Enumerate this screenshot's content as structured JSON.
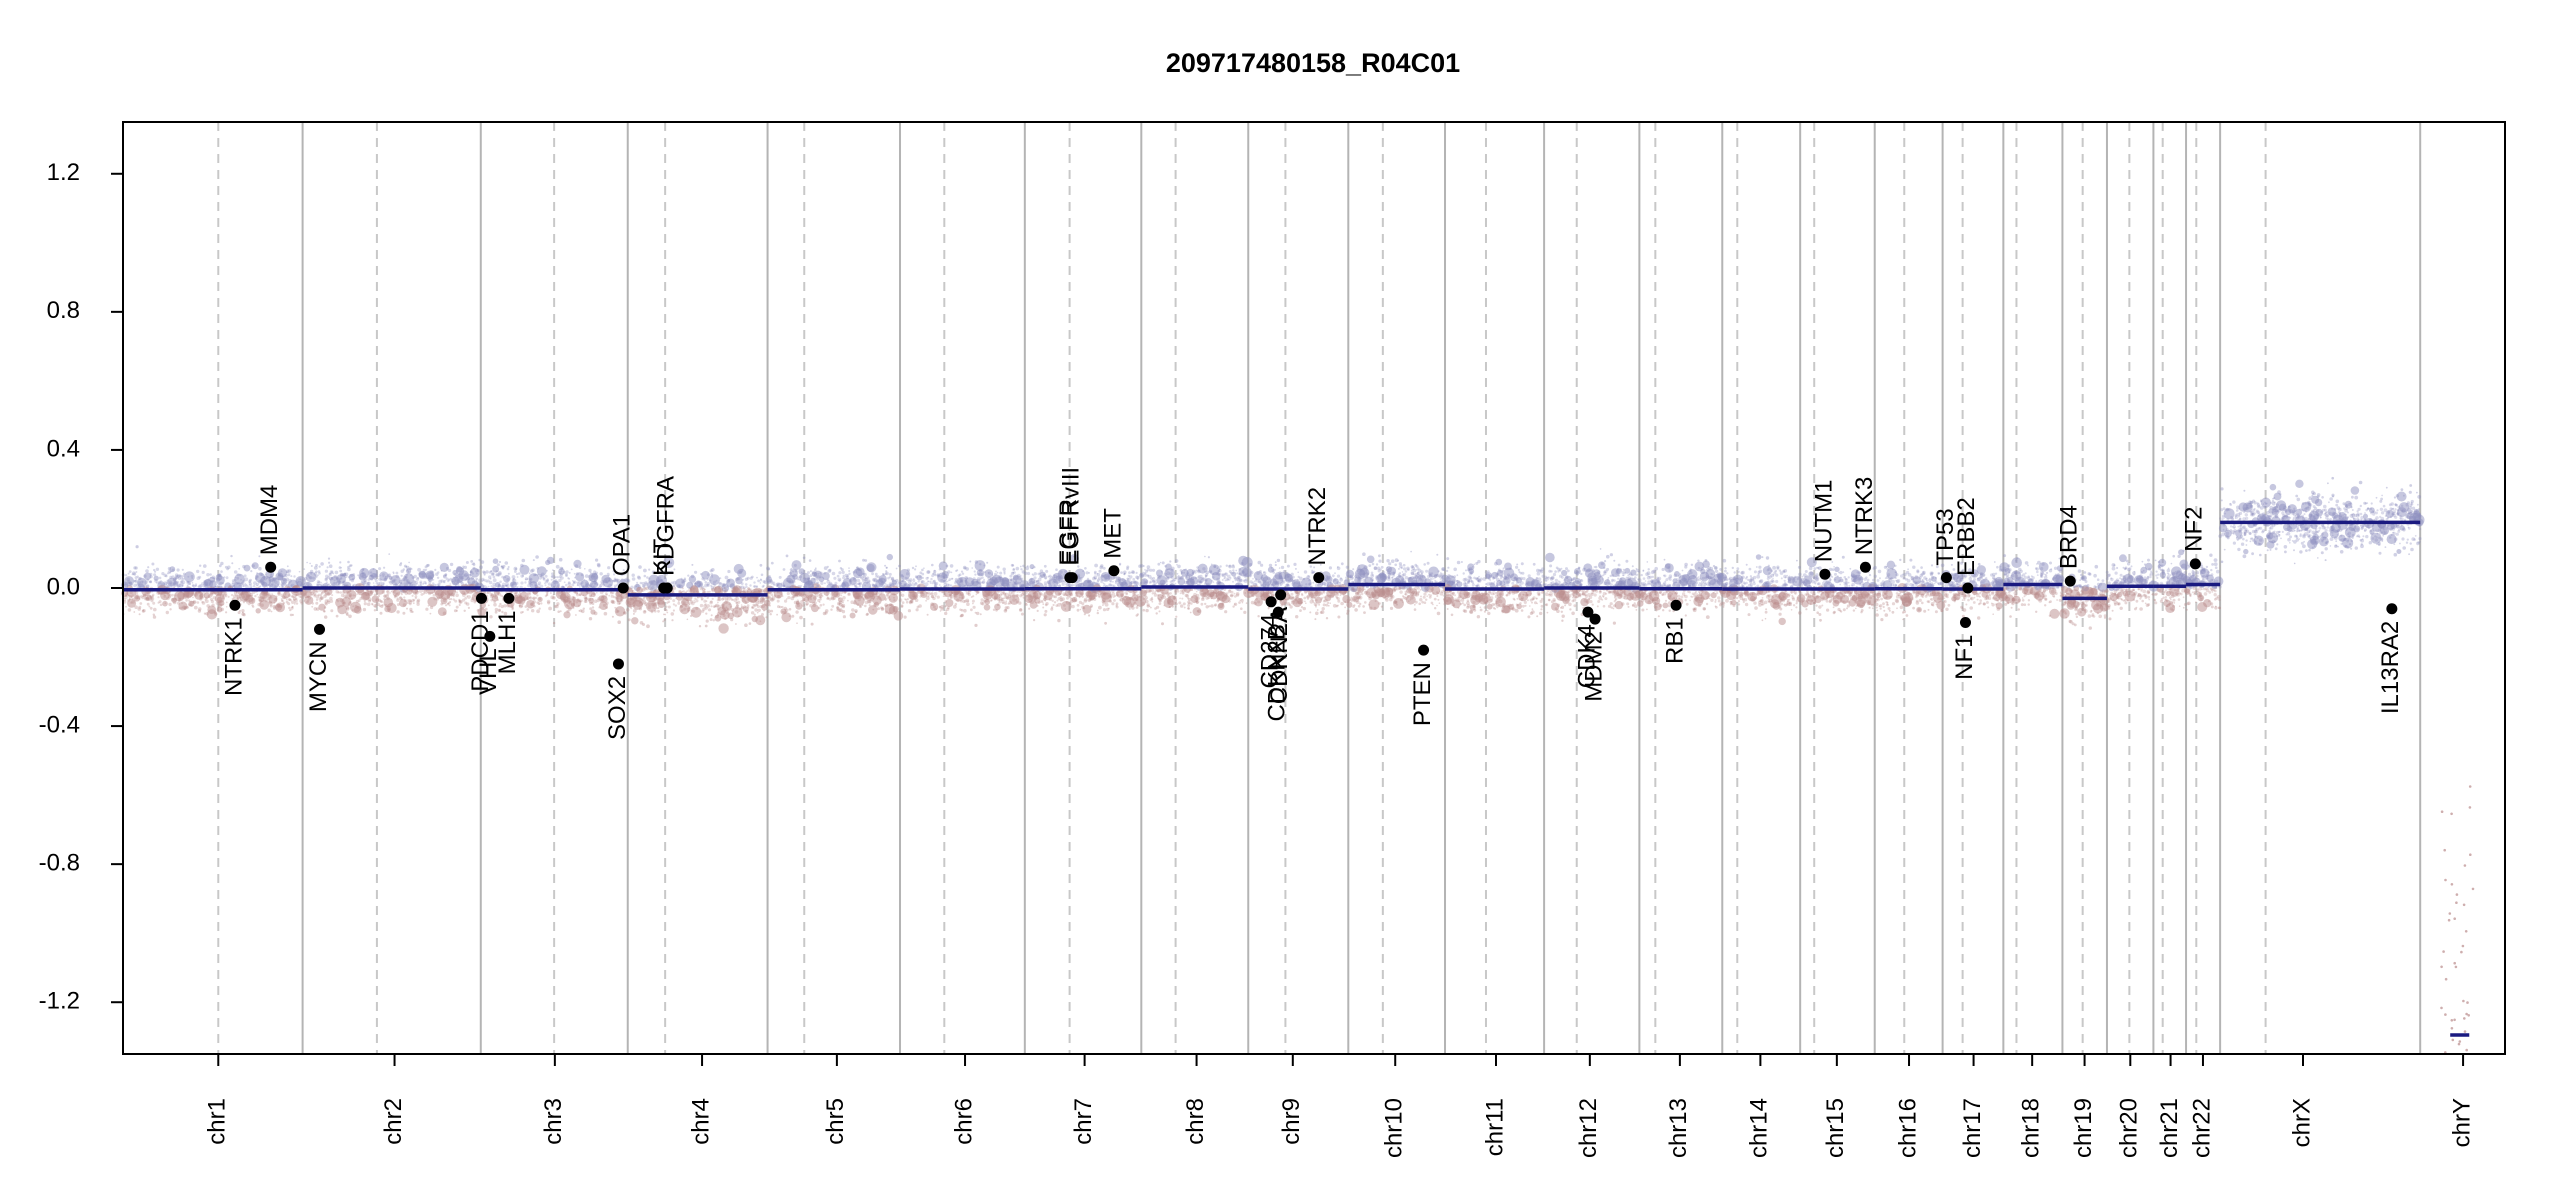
{
  "chart_data": {
    "type": "scatter",
    "title": "209717480158_R04C01",
    "xlabel": "",
    "ylabel": "",
    "ylim": [
      -1.35,
      1.35
    ],
    "y_ticks": [
      -1.2,
      -0.8,
      -0.4,
      0.0,
      0.4,
      0.8,
      1.2
    ],
    "y_tick_labels": [
      "-1.2",
      "-0.8",
      "-0.4",
      "0.0",
      "0.4",
      "0.8",
      "1.2"
    ],
    "x_range": [
      0,
      1000
    ],
    "colors": {
      "gain": "#8e8fbf",
      "loss": "#b98b8b",
      "segment": "#1a1a80",
      "gene": "#000000",
      "axis": "#000000",
      "boundary": "#b4b4b4",
      "centromere": "#c8c8c8"
    },
    "chromosomes": [
      {
        "name": "chr1",
        "start": 0,
        "end": 75.4,
        "centromere": 40.0,
        "label": 40.0
      },
      {
        "name": "chr2",
        "start": 75.4,
        "end": 150.2,
        "centromere": 106.6,
        "label": 114.0
      },
      {
        "name": "chr3",
        "start": 150.2,
        "end": 211.9,
        "centromere": 181.0,
        "label": 181.3
      },
      {
        "name": "chr4",
        "start": 211.9,
        "end": 270.6,
        "centromere": 227.6,
        "label": 243.1
      },
      {
        "name": "chr5",
        "start": 270.6,
        "end": 326.2,
        "centromere": 286.0,
        "label": 299.7
      },
      {
        "name": "chr6",
        "start": 326.2,
        "end": 378.6,
        "centromere": 344.8,
        "label": 353.5
      },
      {
        "name": "chr7",
        "start": 378.6,
        "end": 427.5,
        "centromere": 397.4,
        "label": 403.7
      },
      {
        "name": "chr8",
        "start": 427.5,
        "end": 472.4,
        "centromere": 441.9,
        "label": 450.7
      },
      {
        "name": "chr9",
        "start": 472.4,
        "end": 514.4,
        "centromere": 488.0,
        "label": 491.1
      },
      {
        "name": "chr10",
        "start": 514.4,
        "end": 555.0,
        "centromere": 528.9,
        "label": 534.1
      },
      {
        "name": "chr11",
        "start": 555.0,
        "end": 596.6,
        "centromere": 572.2,
        "label": 576.4
      },
      {
        "name": "chr12",
        "start": 596.6,
        "end": 636.6,
        "centromere": 610.3,
        "label": 615.8
      },
      {
        "name": "chr13",
        "start": 636.6,
        "end": 671.4,
        "centromere": 643.3,
        "label": 653.6
      },
      {
        "name": "chr14",
        "start": 671.4,
        "end": 704.1,
        "centromere": 677.7,
        "label": 687.4
      },
      {
        "name": "chr15",
        "start": 704.1,
        "end": 735.4,
        "centromere": 710.0,
        "label": 719.5
      },
      {
        "name": "chr16",
        "start": 735.4,
        "end": 763.9,
        "centromere": 747.8,
        "label": 749.8
      },
      {
        "name": "chr17",
        "start": 763.9,
        "end": 789.4,
        "centromere": 772.3,
        "label": 776.9
      },
      {
        "name": "chr18",
        "start": 789.4,
        "end": 814.2,
        "centromere": 794.9,
        "label": 801.5
      },
      {
        "name": "chr19",
        "start": 814.2,
        "end": 832.9,
        "centromere": 822.7,
        "label": 823.5
      },
      {
        "name": "chr20",
        "start": 832.9,
        "end": 852.4,
        "centromere": 842.3,
        "label": 842.7
      },
      {
        "name": "chr21",
        "start": 852.4,
        "end": 866.1,
        "centromere": 856.3,
        "label": 859.6
      },
      {
        "name": "chr22",
        "start": 866.1,
        "end": 880.4,
        "centromere": 870.4,
        "label": 873.2
      },
      {
        "name": "chrX",
        "start": 880.4,
        "end": 964.4,
        "centromere": 899.5,
        "label": 915.2
      },
      {
        "name": "chrY",
        "start": 964.4,
        "end": 1000,
        "centromere": null,
        "label": 982.4
      }
    ],
    "segments": [
      {
        "x0": 0,
        "x1": 75.4,
        "y": -0.005
      },
      {
        "x0": 75.4,
        "x1": 150.2,
        "y": 0.0
      },
      {
        "x0": 150.2,
        "x1": 211.9,
        "y": -0.005
      },
      {
        "x0": 211.9,
        "x1": 270.6,
        "y": -0.02
      },
      {
        "x0": 270.6,
        "x1": 326.2,
        "y": -0.005
      },
      {
        "x0": 326.2,
        "x1": 378.6,
        "y": -0.003
      },
      {
        "x0": 378.6,
        "x1": 427.5,
        "y": -0.002
      },
      {
        "x0": 427.5,
        "x1": 472.4,
        "y": 0.003
      },
      {
        "x0": 472.4,
        "x1": 514.4,
        "y": -0.003
      },
      {
        "x0": 514.4,
        "x1": 555.0,
        "y": 0.01
      },
      {
        "x0": 555.0,
        "x1": 596.6,
        "y": -0.003
      },
      {
        "x0": 596.6,
        "x1": 636.6,
        "y": 0.0
      },
      {
        "x0": 636.6,
        "x1": 671.4,
        "y": -0.002
      },
      {
        "x0": 671.4,
        "x1": 704.1,
        "y": -0.003
      },
      {
        "x0": 704.1,
        "x1": 735.4,
        "y": -0.003
      },
      {
        "x0": 735.4,
        "x1": 763.9,
        "y": -0.002
      },
      {
        "x0": 763.9,
        "x1": 789.4,
        "y": -0.003
      },
      {
        "x0": 789.4,
        "x1": 814.2,
        "y": 0.01
      },
      {
        "x0": 814.2,
        "x1": 832.9,
        "y": -0.03
      },
      {
        "x0": 832.9,
        "x1": 852.4,
        "y": 0.005
      },
      {
        "x0": 852.4,
        "x1": 866.1,
        "y": 0.005
      },
      {
        "x0": 866.1,
        "x1": 880.4,
        "y": 0.01
      },
      {
        "x0": 880.4,
        "x1": 964.4,
        "y": 0.19
      },
      {
        "x0": 977.0,
        "x1": 985.0,
        "y": -1.295
      }
    ],
    "genes": [
      {
        "name": "NTRK1",
        "x": 47.0,
        "y": -0.05,
        "dir": "down"
      },
      {
        "name": "MDM4",
        "x": 62.0,
        "y": 0.06,
        "dir": "up"
      },
      {
        "name": "MYCN",
        "x": 82.5,
        "y": -0.12,
        "dir": "down"
      },
      {
        "name": "PDCD1",
        "x": 150.5,
        "y": -0.03,
        "dir": "down"
      },
      {
        "name": "VHL",
        "x": 154.0,
        "y": -0.14,
        "dir": "down"
      },
      {
        "name": "MLH1",
        "x": 162.0,
        "y": -0.03,
        "dir": "down"
      },
      {
        "name": "SOX2",
        "x": 208.0,
        "y": -0.22,
        "dir": "down"
      },
      {
        "name": "OPA1",
        "x": 210.0,
        "y": 0.0,
        "dir": "up"
      },
      {
        "name": "KIT",
        "x": 227.0,
        "y": 0.0,
        "dir": "up"
      },
      {
        "name": "PDGFRA",
        "x": 228.5,
        "y": 0.0,
        "dir": "up"
      },
      {
        "name": "EGFR",
        "x": 397.5,
        "y": 0.03,
        "dir": "up"
      },
      {
        "name": "EGFRvIII",
        "x": 398.5,
        "y": 0.03,
        "dir": "up"
      },
      {
        "name": "MET",
        "x": 416.0,
        "y": 0.05,
        "dir": "up"
      },
      {
        "name": "CD274",
        "x": 482.0,
        "y": -0.04,
        "dir": "down"
      },
      {
        "name": "CDKN2B",
        "x": 485.0,
        "y": -0.07,
        "dir": "down"
      },
      {
        "name": "CDKN2A",
        "x": 486.0,
        "y": -0.02,
        "dir": "down"
      },
      {
        "name": "NTRK2",
        "x": 502.0,
        "y": 0.03,
        "dir": "up"
      },
      {
        "name": "PTEN",
        "x": 546.0,
        "y": -0.18,
        "dir": "down"
      },
      {
        "name": "CDK4",
        "x": 615.0,
        "y": -0.07,
        "dir": "down"
      },
      {
        "name": "MDM2",
        "x": 618.0,
        "y": -0.09,
        "dir": "down"
      },
      {
        "name": "RB1",
        "x": 652.0,
        "y": -0.05,
        "dir": "down"
      },
      {
        "name": "NUTM1",
        "x": 714.5,
        "y": 0.04,
        "dir": "up"
      },
      {
        "name": "NTRK3",
        "x": 731.5,
        "y": 0.06,
        "dir": "up"
      },
      {
        "name": "TP53",
        "x": 765.5,
        "y": 0.03,
        "dir": "up"
      },
      {
        "name": "NF1",
        "x": 773.5,
        "y": -0.1,
        "dir": "down"
      },
      {
        "name": "ERBB2",
        "x": 774.5,
        "y": 0.0,
        "dir": "up"
      },
      {
        "name": "BRD4",
        "x": 817.5,
        "y": 0.02,
        "dir": "up"
      },
      {
        "name": "NF2",
        "x": 870.0,
        "y": 0.07,
        "dir": "up"
      },
      {
        "name": "IL13RA2",
        "x": 952.5,
        "y": -0.06,
        "dir": "down"
      }
    ]
  }
}
